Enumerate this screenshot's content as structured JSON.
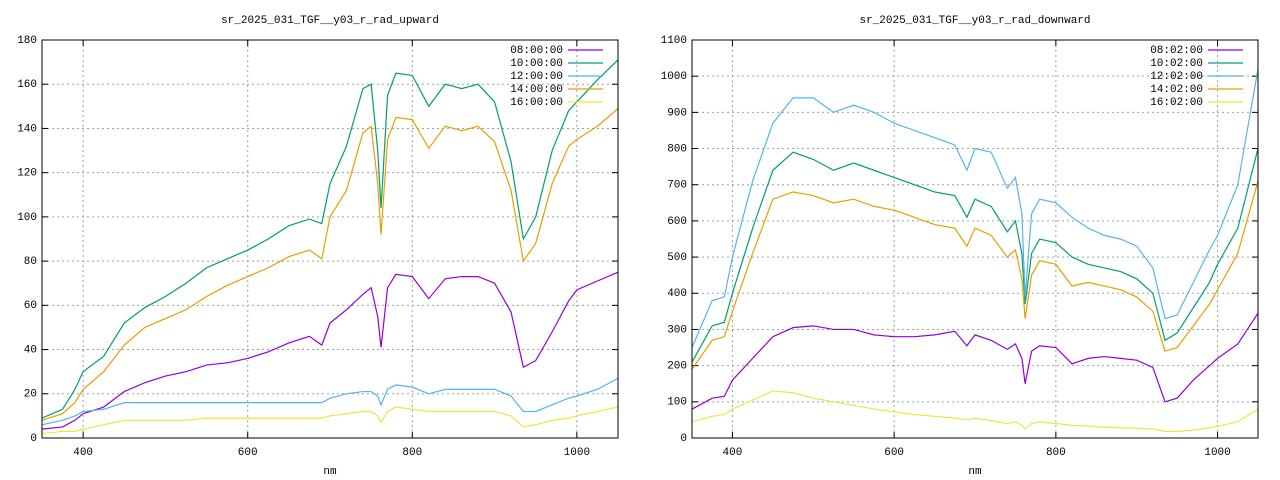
{
  "chart_data": [
    {
      "type": "line",
      "title": "sr_2025_031_TGF__y03_r_rad_upward",
      "xlabel": "nm",
      "xlim": [
        350,
        1050
      ],
      "xticks": [
        400,
        600,
        800,
        1000
      ],
      "ylim": [
        0,
        180
      ],
      "yticks": [
        0,
        20,
        40,
        60,
        80,
        100,
        120,
        140,
        160,
        180
      ],
      "grid": true,
      "legend": "top-right",
      "x": [
        350,
        375,
        390,
        400,
        425,
        450,
        475,
        500,
        525,
        550,
        575,
        600,
        625,
        650,
        675,
        690,
        700,
        720,
        740,
        750,
        758,
        762,
        770,
        780,
        800,
        820,
        840,
        860,
        880,
        900,
        920,
        935,
        950,
        970,
        990,
        1000,
        1025,
        1050
      ],
      "series": [
        {
          "name": "08:00:00",
          "color": "#9400d3",
          "values": [
            4,
            5,
            8,
            11,
            14,
            21,
            25,
            28,
            30,
            33,
            34,
            36,
            39,
            43,
            46,
            42,
            52,
            58,
            65,
            68,
            55,
            41,
            68,
            74,
            73,
            63,
            72,
            73,
            73,
            70,
            57,
            32,
            35,
            48,
            62,
            67,
            71,
            75
          ]
        },
        {
          "name": "10:00:00",
          "color": "#009e73",
          "values": [
            9,
            13,
            22,
            30,
            37,
            52,
            59,
            64,
            70,
            77,
            81,
            85,
            90,
            96,
            99,
            97,
            115,
            132,
            158,
            160,
            130,
            104,
            155,
            165,
            164,
            150,
            160,
            158,
            160,
            152,
            125,
            90,
            100,
            130,
            148,
            152,
            162,
            171
          ]
        },
        {
          "name": "12:00:00",
          "color": "#56b4e9",
          "values": [
            6,
            8,
            10,
            12,
            13,
            16,
            16,
            16,
            16,
            16,
            16,
            16,
            16,
            16,
            16,
            16,
            18,
            20,
            21,
            21,
            19,
            15,
            22,
            24,
            23,
            20,
            22,
            22,
            22,
            22,
            19,
            12,
            12,
            15,
            18,
            19,
            22,
            27
          ]
        },
        {
          "name": "14:00:00",
          "color": "#e69f00",
          "values": [
            8,
            11,
            16,
            22,
            30,
            42,
            50,
            54,
            58,
            64,
            69,
            73,
            77,
            82,
            85,
            81,
            100,
            112,
            138,
            141,
            115,
            92,
            135,
            145,
            144,
            131,
            141,
            139,
            141,
            134,
            112,
            80,
            88,
            115,
            132,
            135,
            141,
            149
          ]
        },
        {
          "name": "16:00:00",
          "color": "#f0e442",
          "values": [
            2,
            3,
            3,
            4,
            6,
            8,
            8,
            8,
            8,
            9,
            9,
            9,
            9,
            9,
            9,
            9,
            10,
            11,
            12,
            12,
            10,
            7,
            12,
            14,
            13,
            12,
            12,
            12,
            12,
            12,
            10,
            5,
            6,
            8,
            9,
            10,
            12,
            14
          ]
        }
      ]
    },
    {
      "type": "line",
      "title": "sr_2025_031_TGF__y03_r_rad_downward",
      "xlabel": "nm",
      "xlim": [
        350,
        1050
      ],
      "xticks": [
        400,
        600,
        800,
        1000
      ],
      "ylim": [
        0,
        1100
      ],
      "yticks": [
        0,
        100,
        200,
        300,
        400,
        500,
        600,
        700,
        800,
        900,
        1000,
        1100
      ],
      "grid": true,
      "legend": "top-right",
      "x": [
        350,
        375,
        390,
        400,
        425,
        450,
        475,
        500,
        525,
        550,
        575,
        600,
        625,
        650,
        675,
        690,
        700,
        720,
        740,
        750,
        758,
        762,
        770,
        780,
        800,
        820,
        840,
        860,
        880,
        900,
        920,
        935,
        950,
        970,
        990,
        1000,
        1025,
        1050
      ],
      "series": [
        {
          "name": "08:02:00",
          "color": "#9400d3",
          "values": [
            80,
            110,
            115,
            160,
            220,
            280,
            305,
            310,
            300,
            300,
            285,
            280,
            280,
            285,
            295,
            255,
            285,
            270,
            245,
            260,
            220,
            150,
            240,
            255,
            250,
            205,
            220,
            225,
            220,
            215,
            195,
            100,
            110,
            160,
            200,
            220,
            260,
            345
          ]
        },
        {
          "name": "10:02:00",
          "color": "#009e73",
          "values": [
            210,
            310,
            320,
            400,
            580,
            740,
            790,
            770,
            740,
            760,
            740,
            720,
            700,
            680,
            670,
            610,
            660,
            640,
            570,
            600,
            510,
            370,
            510,
            550,
            540,
            500,
            480,
            470,
            460,
            440,
            400,
            270,
            290,
            360,
            430,
            480,
            580,
            800
          ]
        },
        {
          "name": "12:02:00",
          "color": "#56b4e9",
          "values": [
            250,
            380,
            390,
            500,
            710,
            870,
            940,
            940,
            900,
            920,
            900,
            870,
            850,
            830,
            810,
            740,
            800,
            790,
            690,
            720,
            620,
            390,
            620,
            660,
            650,
            610,
            580,
            560,
            550,
            530,
            470,
            330,
            340,
            430,
            520,
            560,
            700,
            1020
          ]
        },
        {
          "name": "14:02:00",
          "color": "#e69f00",
          "values": [
            190,
            270,
            280,
            350,
            510,
            660,
            680,
            670,
            650,
            660,
            640,
            630,
            610,
            590,
            580,
            530,
            580,
            560,
            500,
            520,
            440,
            330,
            450,
            490,
            480,
            420,
            430,
            420,
            410,
            390,
            350,
            240,
            250,
            310,
            370,
            410,
            510,
            710
          ]
        },
        {
          "name": "16:02:00",
          "color": "#f0e442",
          "values": [
            45,
            60,
            65,
            80,
            105,
            130,
            125,
            110,
            100,
            90,
            80,
            72,
            65,
            60,
            55,
            50,
            55,
            48,
            40,
            45,
            35,
            25,
            40,
            45,
            40,
            35,
            33,
            30,
            28,
            27,
            25,
            18,
            18,
            22,
            28,
            32,
            45,
            80
          ]
        }
      ]
    }
  ]
}
